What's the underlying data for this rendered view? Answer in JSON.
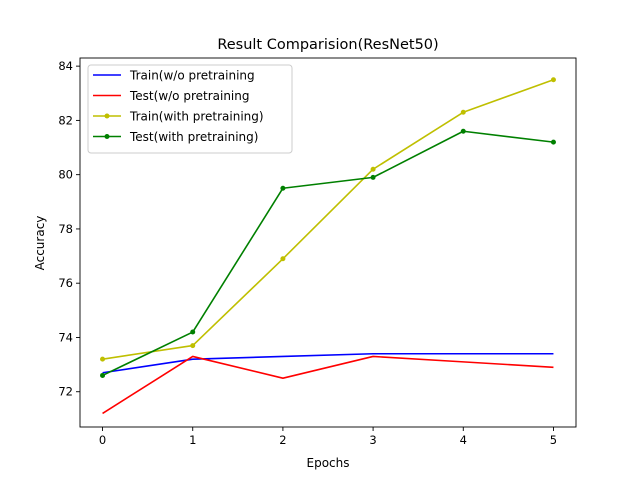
{
  "chart_data": {
    "type": "line",
    "title": "Result Comparision(ResNet50)",
    "xlabel": "Epochs",
    "ylabel": "Accuracy",
    "x": [
      0,
      1,
      2,
      3,
      4,
      5
    ],
    "xlim": [
      -0.25,
      5.25
    ],
    "ylim": [
      70.7,
      84.3
    ],
    "xticks": [
      0,
      1,
      2,
      3,
      4,
      5
    ],
    "yticks": [
      72,
      74,
      76,
      78,
      80,
      82,
      84
    ],
    "grid": false,
    "legend_position": "upper-left",
    "series": [
      {
        "name": "Train(w/o pretraining",
        "color": "#0000ff",
        "marker": false,
        "values": [
          72.7,
          73.2,
          73.3,
          73.4,
          73.4,
          73.4
        ]
      },
      {
        "name": "Test(w/o pretraining",
        "color": "#ff0000",
        "marker": false,
        "values": [
          71.2,
          73.3,
          72.5,
          73.3,
          73.1,
          72.9
        ]
      },
      {
        "name": "Train(with pretraining)",
        "color": "#bfbf00",
        "marker": true,
        "values": [
          73.2,
          73.7,
          76.9,
          80.2,
          82.3,
          83.5
        ]
      },
      {
        "name": "Test(with pretraining)",
        "color": "#008000",
        "marker": true,
        "values": [
          72.6,
          74.2,
          79.5,
          79.9,
          81.6,
          81.2
        ]
      }
    ]
  }
}
